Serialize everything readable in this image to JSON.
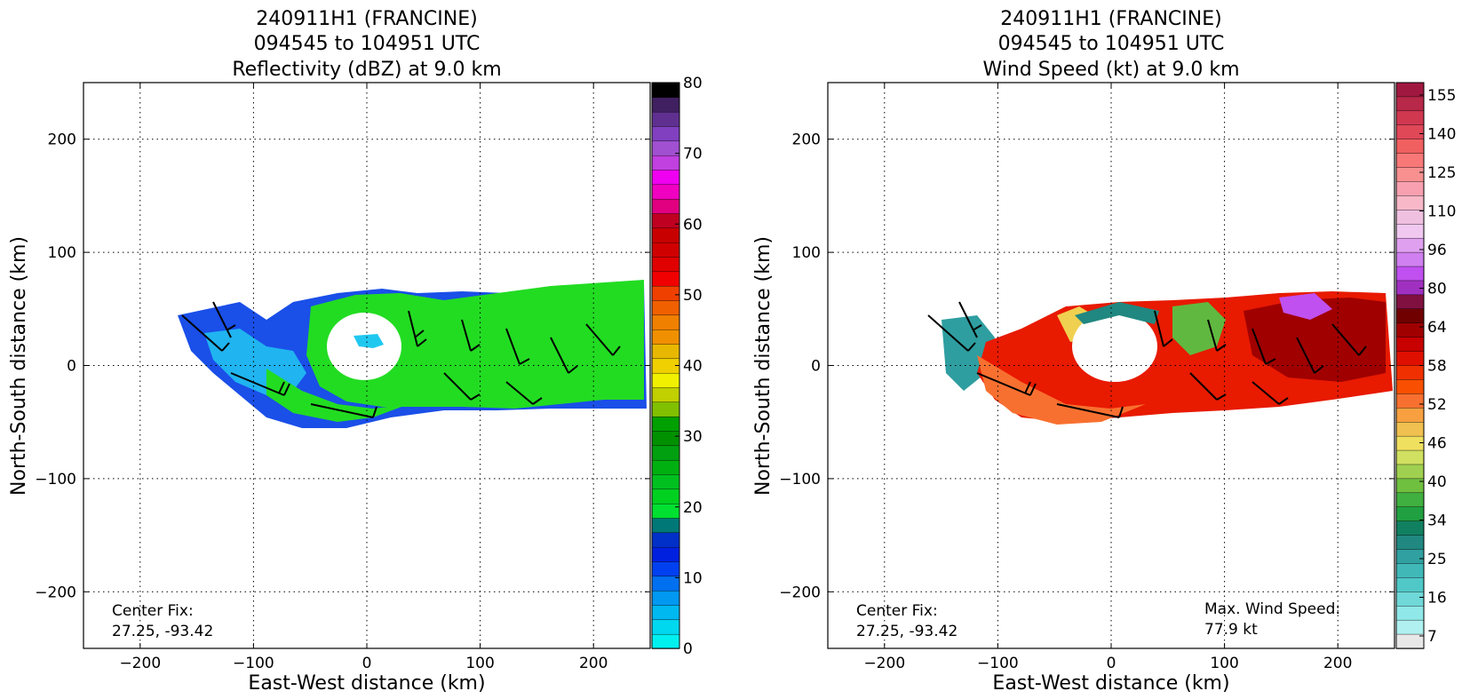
{
  "chart_data": [
    {
      "type": "heatmap",
      "title_lines": [
        "240911H1 (FRANCINE)",
        "094545 to 104951 UTC",
        "Reflectivity (dBZ) at 9.0 km"
      ],
      "xlabel": "East-West distance (km)",
      "ylabel": "North-South distance (km)",
      "xlim": [
        -250,
        250
      ],
      "ylim": [
        -250,
        250
      ],
      "xticks": [
        -200,
        -100,
        0,
        100,
        200
      ],
      "yticks": [
        200,
        100,
        0,
        -100,
        -200
      ],
      "xtick_labels": [
        "−200",
        "−100",
        "0",
        "100",
        "200"
      ],
      "ytick_labels": [
        "200",
        "100",
        "0",
        "−100",
        "−200"
      ],
      "grid": true,
      "annotation_lines": [
        "Center Fix:",
        "27.25, -93.42"
      ],
      "colorbar": {
        "min": 0,
        "max": 80,
        "ticks": [
          0,
          10,
          20,
          30,
          40,
          50,
          60,
          70,
          80
        ],
        "tick_labels": [
          "0",
          "10",
          "20",
          "30",
          "40",
          "50",
          "60",
          "70",
          "80"
        ],
        "colors": [
          "#00f0f0",
          "#00d8f0",
          "#00b8f0",
          "#0098f0",
          "#0070f0",
          "#0040f0",
          "#0020e0",
          "#0030c8",
          "#007878",
          "#00e030",
          "#00d020",
          "#00c020",
          "#00b010",
          "#00a010",
          "#009000",
          "#00a000",
          "#80c000",
          "#c0d000",
          "#f0f000",
          "#f0d000",
          "#e8b800",
          "#f09000",
          "#f08000",
          "#f06000",
          "#f04000",
          "#f00000",
          "#e00000",
          "#d00000",
          "#c80000",
          "#c00020",
          "#e00080",
          "#f000c0",
          "#f000f0",
          "#c040e0",
          "#a050d0",
          "#8040c0",
          "#603090",
          "#402060",
          "#000000"
        ]
      },
      "shading": "green reflectivity (roughly 20-30 dBZ) with blue fringes, clear eye near center"
    },
    {
      "type": "heatmap",
      "title_lines": [
        "240911H1 (FRANCINE)",
        "094545 to 104951 UTC",
        "Wind Speed (kt) at 9.0 km"
      ],
      "xlabel": "East-West distance (km)",
      "ylabel": "North-South distance (km)",
      "xlim": [
        -250,
        250
      ],
      "ylim": [
        -250,
        250
      ],
      "xticks": [
        -200,
        -100,
        0,
        100,
        200
      ],
      "yticks": [
        200,
        100,
        0,
        -100,
        -200
      ],
      "xtick_labels": [
        "−200",
        "−100",
        "0",
        "100",
        "200"
      ],
      "ytick_labels": [
        "200",
        "100",
        "0",
        "−100",
        "−200"
      ],
      "grid": true,
      "annotation_lines": [
        "Center Fix:",
        "27.25, -93.42"
      ],
      "max_wind_lines": [
        "Max. Wind Speed:",
        "77.9 kt"
      ],
      "colorbar": {
        "ticks_top_to_bottom": [
          "155",
          "140",
          "125",
          "110",
          "96",
          "80",
          "64",
          "58",
          "52",
          "46",
          "40",
          "34",
          "25",
          "16",
          "7"
        ],
        "colors_top_to_bottom": [
          "#a01840",
          "#b82848",
          "#d03850",
          "#e04858",
          "#f06060",
          "#f87878",
          "#f89090",
          "#f8a0b0",
          "#f8b8c8",
          "#f0c0e0",
          "#f0c8f0",
          "#e0a0f0",
          "#d080f0",
          "#c050f0",
          "#a030c0",
          "#801040",
          "#700000",
          "#a00000",
          "#c80000",
          "#e01000",
          "#f03000",
          "#f85000",
          "#f87030",
          "#f8a040",
          "#f0c050",
          "#f0e060",
          "#d0e060",
          "#a0d050",
          "#70c040",
          "#40b040",
          "#20a040",
          "#108060",
          "#208880",
          "#30a0a0",
          "#40b8b8",
          "#50c8c8",
          "#70d8d8",
          "#90e8e8",
          "#b0f0f0",
          "#e8e8e8"
        ]
      },
      "shading": "wind speed mostly 46-64 kt (orange-red) with purple maxima to the east and teal near the eye"
    }
  ]
}
